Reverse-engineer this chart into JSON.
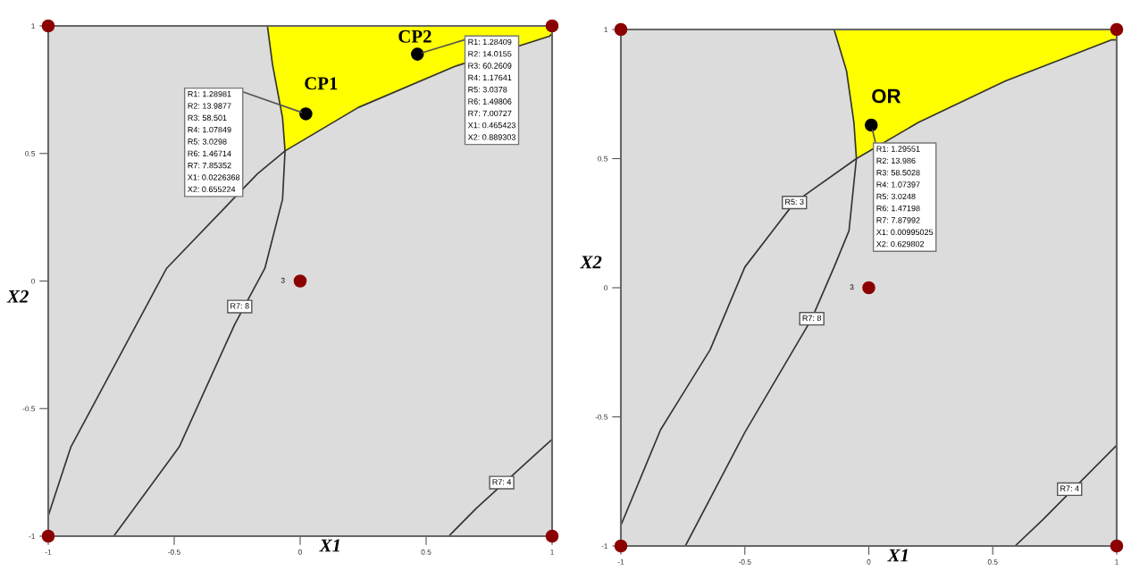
{
  "chart_data": [
    {
      "type": "line",
      "xlabel": "X1",
      "ylabel": "X2",
      "xlim": [
        -1,
        1
      ],
      "ylim": [
        -1,
        1
      ],
      "xticks": [
        -1,
        -0.5,
        0,
        0.5,
        1
      ],
      "yticks": [
        -1,
        -0.5,
        0,
        0.5,
        1
      ],
      "grid": false,
      "line_style": "solid",
      "series": [
        {
          "type": "area",
          "color": "#ffff00",
          "x": [
            -0.13,
            -0.11,
            -0.07,
            -0.06,
            0.23,
            0.61,
            0.99,
            1,
            1
          ],
          "values": [
            1,
            0.85,
            0.64,
            0.51,
            0.68,
            0.84,
            0.96,
            0.97,
            1
          ]
        },
        {
          "color": "#333333",
          "x": [
            -1,
            -0.91,
            -0.72,
            -0.53,
            -0.17,
            -0.06,
            0.23,
            0.61,
            0.99,
            1
          ],
          "values": [
            -0.92,
            -0.65,
            -0.3,
            0.05,
            0.42,
            0.51,
            0.68,
            0.84,
            0.96,
            0.97
          ]
        },
        {
          "color": "#333333",
          "x": [
            -0.74,
            -0.48,
            -0.26,
            -0.14,
            -0.07,
            -0.06,
            -0.07,
            -0.11,
            -0.13
          ],
          "values": [
            -1,
            -0.65,
            -0.17,
            0.05,
            0.32,
            0.51,
            0.64,
            0.85,
            1
          ]
        },
        {
          "color": "#333333",
          "x": [
            0.59,
            0.7,
            1
          ],
          "values": [
            -1,
            -0.89,
            -0.62
          ]
        },
        {
          "type": "scatter",
          "marker": "circle",
          "color": "#8b0000",
          "x": [
            -1,
            1,
            -1,
            1,
            0
          ],
          "values": [
            -1,
            -1,
            1,
            1,
            0
          ]
        },
        {
          "type": "scatter",
          "marker": "circle",
          "color": "#000000",
          "x": [
            0.0226368,
            0.465423
          ],
          "values": [
            0.655224,
            0.889303
          ]
        }
      ],
      "annotations": [
        {
          "text": "CP1",
          "x": 0.0226368,
          "y": 0.655224
        },
        "R1: 1.28981\nR2: 13.9877\nR3: 58.501\nR4: 1.07849\nR5: 3.0298\nR6: 1.46714\nR7: 7.85352\nX1: 0.0226368\nX2: 0.655224",
        {
          "text": "CP2",
          "x": 0.465423,
          "y": 0.889303
        },
        "R1: 1.28409\nR2: 14.0155\nR3: 60.2609\nR4: 1.17641\nR5: 3.0378\nR6: 1.49806\nR7: 7.00727\nX1: 0.465423\nX2: 0.889303",
        {
          "text": "3",
          "x": 0,
          "y": 0
        },
        {
          "text": "R7: 8",
          "x": -0.24,
          "y": -0.1
        },
        {
          "text": "R7: 4",
          "x": 0.8,
          "y": -0.79
        }
      ]
    },
    {
      "type": "line",
      "xlabel": "X1",
      "ylabel": "X2",
      "xlim": [
        -1,
        1
      ],
      "ylim": [
        -1,
        1
      ],
      "xticks": [
        -1,
        -0.5,
        0,
        0.5,
        1
      ],
      "yticks": [
        -1,
        -0.5,
        0,
        0.5,
        1
      ],
      "grid": false,
      "line_style": "solid",
      "series": [
        {
          "type": "area",
          "color": "#ffff00",
          "x": [
            -0.14,
            -0.09,
            -0.06,
            -0.05,
            0.2,
            0.55,
            0.98,
            1,
            1
          ],
          "values": [
            1,
            0.84,
            0.64,
            0.5,
            0.64,
            0.8,
            0.96,
            0.96,
            1
          ]
        },
        {
          "color": "#333333",
          "x": [
            -1,
            -0.84,
            -0.64,
            -0.5,
            -0.3,
            -0.05,
            0.2,
            0.55,
            0.98,
            1
          ],
          "values": [
            -0.92,
            -0.55,
            -0.24,
            0.08,
            0.33,
            0.5,
            0.64,
            0.8,
            0.96,
            0.96
          ]
        },
        {
          "color": "#333333",
          "x": [
            -0.74,
            -0.5,
            -0.23,
            -0.14,
            -0.08,
            -0.05,
            -0.06,
            -0.09,
            -0.14
          ],
          "values": [
            -1,
            -0.56,
            -0.12,
            0.08,
            0.22,
            0.5,
            0.64,
            0.84,
            1
          ]
        },
        {
          "color": "#333333",
          "x": [
            0.59,
            0.7,
            1
          ],
          "values": [
            -1,
            -0.9,
            -0.61
          ]
        },
        {
          "type": "scatter",
          "marker": "circle",
          "color": "#8b0000",
          "x": [
            -1,
            1,
            -1,
            1,
            0
          ],
          "values": [
            -1,
            -1,
            1,
            1,
            0
          ]
        },
        {
          "type": "scatter",
          "marker": "circle",
          "color": "#000000",
          "x": [
            0.00995025
          ],
          "values": [
            0.629802
          ]
        }
      ],
      "annotations": [
        {
          "text": "OR",
          "x": 0.00995025,
          "y": 0.629802
        },
        "R1: 1.29551\nR2: 13.986\nR3: 58.5028\nR4: 1.07397\nR5: 3.0248\nR6: 1.47198\nR7: 7.87992\nX1: 0.00995025\nX2: 0.629802",
        {
          "text": "3",
          "x": 0,
          "y": 0
        },
        {
          "text": "R5: 3",
          "x": -0.3,
          "y": 0.33
        },
        {
          "text": "R7: 8",
          "x": -0.23,
          "y": -0.12
        },
        {
          "text": "R7: 4",
          "x": 0.81,
          "y": -0.78
        }
      ]
    }
  ]
}
